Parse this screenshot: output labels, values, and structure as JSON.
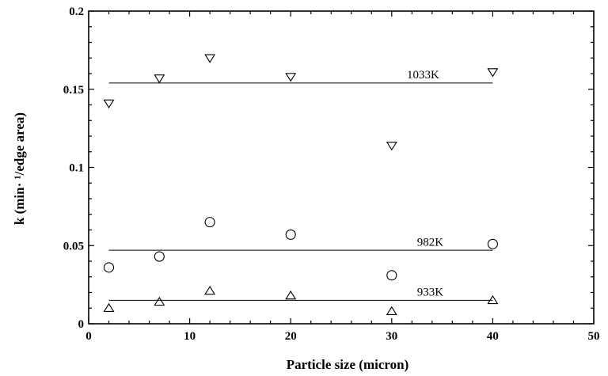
{
  "chart_data": {
    "type": "scatter",
    "title": "",
    "xlabel": "Particle size (micron)",
    "ylabel": "k (min· ¹/edge area)",
    "xlim": [
      0,
      50
    ],
    "ylim": [
      0,
      0.2
    ],
    "x_ticks": [
      0,
      10,
      20,
      30,
      40,
      50
    ],
    "y_ticks": [
      0,
      0.05,
      0.1,
      0.15,
      0.2
    ],
    "x_tick_labels": [
      "0",
      "10",
      "20",
      "30",
      "40",
      "50"
    ],
    "y_tick_labels": [
      "0",
      "0.05",
      "0.1",
      "0.15",
      "0.2"
    ],
    "grid": false,
    "series": [
      {
        "name": "1033K",
        "marker": "triangle-down",
        "x": [
          2,
          7,
          12,
          20,
          30,
          40
        ],
        "y": [
          0.141,
          0.157,
          0.17,
          0.158,
          0.114,
          0.161
        ],
        "fit": {
          "x": [
            2,
            40
          ],
          "y": [
            0.154,
            0.154
          ]
        },
        "label_at": [
          31.5,
          0.157
        ]
      },
      {
        "name": "982K",
        "marker": "circle",
        "x": [
          2,
          7,
          12,
          20,
          30,
          40
        ],
        "y": [
          0.036,
          0.043,
          0.065,
          0.057,
          0.031,
          0.051
        ],
        "fit": {
          "x": [
            2,
            40
          ],
          "y": [
            0.047,
            0.047
          ]
        },
        "label_at": [
          32.5,
          0.05
        ]
      },
      {
        "name": "933K",
        "marker": "triangle-up",
        "x": [
          2,
          7,
          12,
          20,
          30,
          40
        ],
        "y": [
          0.01,
          0.014,
          0.021,
          0.018,
          0.008,
          0.015
        ],
        "fit": {
          "x": [
            2,
            40
          ],
          "y": [
            0.015,
            0.015
          ]
        },
        "label_at": [
          32.5,
          0.018
        ]
      }
    ]
  }
}
